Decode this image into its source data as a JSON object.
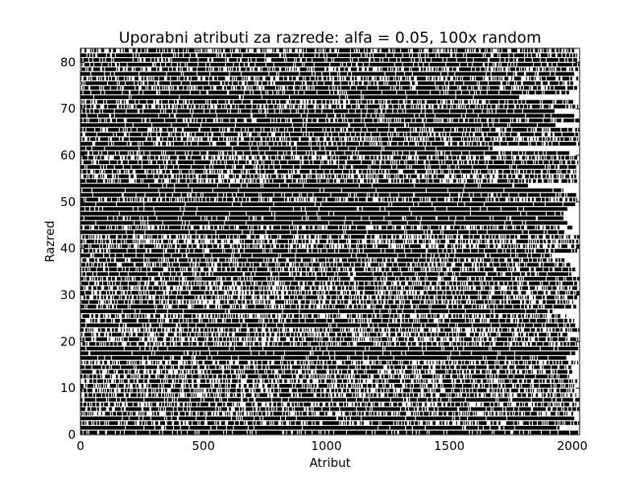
{
  "chart_data": {
    "type": "heatmap",
    "title": "Uporabni atributi za razrede: alfa = 0.05, 100x random",
    "xlabel": "Atribut",
    "ylabel": "Razred",
    "xlim": [
      0,
      2030
    ],
    "ylim": [
      0,
      83
    ],
    "x_ticks": [
      0,
      500,
      1000,
      1500,
      2000
    ],
    "y_ticks": [
      0,
      10,
      20,
      30,
      40,
      50,
      60,
      70,
      80
    ],
    "grid": false,
    "n_rows": 83,
    "n_cols": 2030,
    "colors": {
      "marked": "#000000",
      "unmarked": "#ffffff"
    }
  }
}
